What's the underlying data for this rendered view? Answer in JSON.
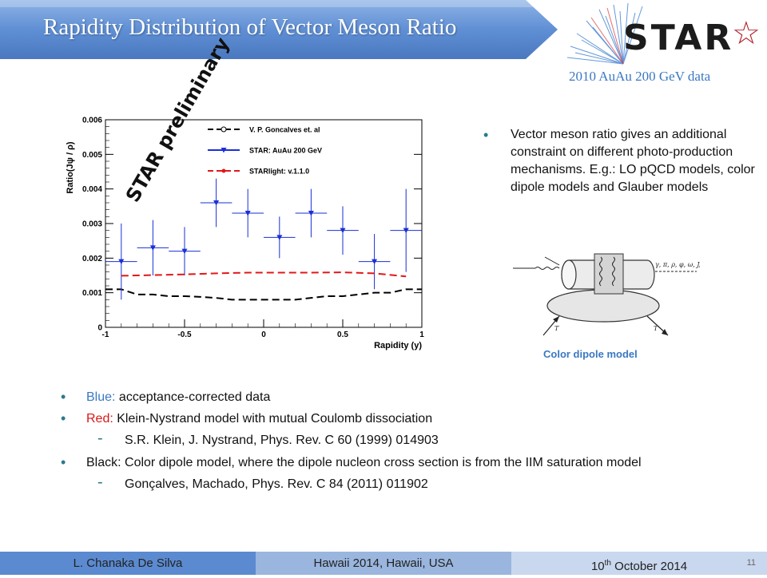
{
  "header": {
    "title": "Rapidity Distribution of Vector Meson Ratio",
    "logo_text": "STAR",
    "logo_glyph": "☆",
    "subtitle": "2010 AuAu 200 GeV data"
  },
  "chart_data": {
    "type": "scatter",
    "ylabel": "Ratio(Jψ / ρ)",
    "xlabel": "Rapidity (y)",
    "xlim": [
      -1,
      1
    ],
    "ylim": [
      0,
      0.006
    ],
    "x_ticks": [
      "-1",
      "-0.5",
      "0",
      "0.5",
      "1"
    ],
    "y_ticks": [
      "0",
      "0.001",
      "0.002",
      "0.003",
      "0.004",
      "0.005",
      "0.006"
    ],
    "annotation": "STAR preliminary",
    "legend_position": "top-right",
    "series": [
      {
        "name": "V. P. Goncalves et. al",
        "style": "dashed-line",
        "color": "#000000",
        "x": [
          -1.0,
          -0.9,
          -0.8,
          -0.7,
          -0.6,
          -0.5,
          -0.4,
          -0.3,
          -0.2,
          -0.1,
          0.0,
          0.1,
          0.2,
          0.3,
          0.4,
          0.5,
          0.6,
          0.7,
          0.8,
          0.9,
          1.0
        ],
        "y": [
          0.0011,
          0.0011,
          0.00095,
          0.00095,
          0.0009,
          0.0009,
          0.00088,
          0.00085,
          0.0008,
          0.0008,
          0.0008,
          0.0008,
          0.0008,
          0.00085,
          0.0009,
          0.0009,
          0.00095,
          0.001,
          0.001,
          0.0011,
          0.0011
        ]
      },
      {
        "name": "STAR: AuAu 200 GeV",
        "style": "points",
        "color": "#1a2fd6",
        "points": [
          {
            "x": -0.9,
            "y": 0.0019,
            "xerr": 0.1,
            "yerr": 0.0011
          },
          {
            "x": -0.7,
            "y": 0.0023,
            "xerr": 0.1,
            "yerr": 0.0008
          },
          {
            "x": -0.5,
            "y": 0.0022,
            "xerr": 0.1,
            "yerr": 0.0007
          },
          {
            "x": -0.3,
            "y": 0.0036,
            "xerr": 0.1,
            "yerr": 0.0007
          },
          {
            "x": -0.1,
            "y": 0.0033,
            "xerr": 0.1,
            "yerr": 0.0007
          },
          {
            "x": 0.1,
            "y": 0.0026,
            "xerr": 0.1,
            "yerr": 0.0006
          },
          {
            "x": 0.3,
            "y": 0.0033,
            "xerr": 0.1,
            "yerr": 0.0007
          },
          {
            "x": 0.5,
            "y": 0.0028,
            "xerr": 0.1,
            "yerr": 0.0007
          },
          {
            "x": 0.7,
            "y": 0.0019,
            "xerr": 0.1,
            "yerr": 0.0008
          },
          {
            "x": 0.9,
            "y": 0.0028,
            "xerr": 0.1,
            "yerr": 0.0012
          }
        ]
      },
      {
        "name": "STARlight: v.1.1.0",
        "style": "dashed-line",
        "color": "#e01818",
        "x": [
          -0.9,
          -0.7,
          -0.5,
          -0.3,
          -0.1,
          0.1,
          0.3,
          0.5,
          0.7,
          0.9
        ],
        "y": [
          0.00149,
          0.00151,
          0.00153,
          0.00156,
          0.00158,
          0.00158,
          0.00158,
          0.00159,
          0.00156,
          0.00147
        ]
      }
    ]
  },
  "right_panel": {
    "bullet_text": "Vector meson ratio gives an additional constraint on different photo-production mechanisms. E.g.: LO pQCD models, color dipole models and Glauber models",
    "diagram_particles": "γ, π, ρ, φ, ω, J/ψ",
    "diagram_label_T1": "T",
    "diagram_label_T2": "T",
    "caption": "Color dipole model"
  },
  "bullets": {
    "blue_label": "Blue:",
    "blue_text": " acceptance-corrected data",
    "red_label": "Red:",
    "red_text": " Klein-Nystrand model with mutual Coulomb dissociation",
    "red_ref": "S.R. Klein, J. Nystrand, Phys. Rev. C 60 (1999) 014903",
    "black_text": "Black: Color dipole model, where the dipole nucleon cross section is from the IIM saturation model",
    "black_ref": "Gonçalves, Machado, Phys. Rev. C 84 (2011) 011902",
    "bullet_glyph": "•",
    "dash_glyph": "-"
  },
  "footer": {
    "author": "L. Chanaka De Silva",
    "venue": "Hawaii 2014, Hawaii, USA",
    "date_day": "10",
    "date_suffix": "th",
    "date_rest": " October 2014",
    "page_number": "11"
  },
  "colors": {
    "accent_blue": "#3a78c2",
    "banner_blue": "#5b8ad0",
    "red_label": "#d81818",
    "blue_label": "#3a78c2"
  }
}
